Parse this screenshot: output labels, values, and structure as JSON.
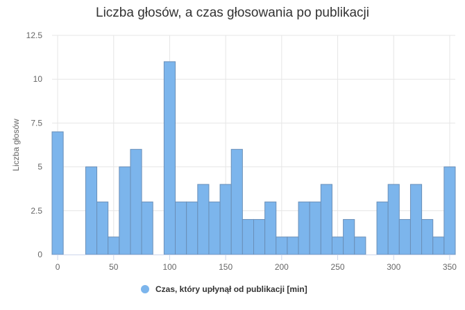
{
  "chart_data": {
    "type": "bar",
    "title": "Liczba głosów, a czas głosowania po publikacji",
    "xlabel": "",
    "ylabel": "Liczba głosów",
    "bin_width": 10,
    "x": [
      0,
      30,
      40,
      50,
      60,
      70,
      80,
      100,
      110,
      120,
      130,
      140,
      150,
      160,
      170,
      180,
      190,
      200,
      210,
      220,
      230,
      240,
      250,
      260,
      270,
      290,
      300,
      310,
      320,
      330,
      340,
      350
    ],
    "values": [
      7,
      5,
      3,
      1,
      5,
      6,
      3,
      11,
      3,
      3,
      4,
      3,
      4,
      6,
      2,
      2,
      3,
      1,
      1,
      3,
      3,
      4,
      1,
      2,
      1,
      3,
      4,
      2,
      4,
      2,
      1,
      5
    ],
    "xlim": [
      -5,
      355
    ],
    "ylim": [
      0,
      12.5
    ],
    "x_ticks": [
      "0",
      "50",
      "100",
      "150",
      "200",
      "250",
      "300",
      "350"
    ],
    "y_ticks": [
      "0",
      "2.5",
      "5",
      "7.5",
      "10",
      "12.5"
    ],
    "grid": true,
    "legend": {
      "position": "bottom",
      "entries": [
        "Czas, który upłynął od publikacji [min]"
      ]
    },
    "colors": {
      "bar_fill": "#7cb5ec",
      "bar_stroke": "#6a8fb8",
      "grid": "#e6e6e6",
      "axis": "#ccd6eb",
      "legend_marker": "#7cb5ec"
    }
  }
}
